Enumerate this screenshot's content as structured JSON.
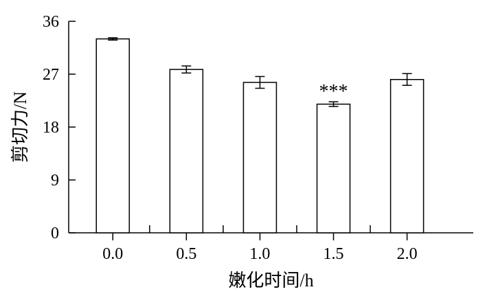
{
  "chart_data": {
    "type": "bar",
    "xlabel": "嫩化时间/h",
    "ylabel": "剪切力/N",
    "categories": [
      "0.0",
      "0.5",
      "1.0",
      "1.5",
      "2.0"
    ],
    "values": [
      33.0,
      27.8,
      25.6,
      21.9,
      26.1
    ],
    "errors": [
      0.2,
      0.6,
      1.0,
      0.4,
      1.0
    ],
    "annotations": [
      {
        "category": "1.5",
        "text": "***"
      }
    ],
    "yticks": [
      "0",
      "9",
      "18",
      "27",
      "36"
    ],
    "ylim": [
      0,
      36
    ],
    "grid": false,
    "legend": false,
    "bar_fill": "#ffffff",
    "stroke_color": "#000000"
  }
}
